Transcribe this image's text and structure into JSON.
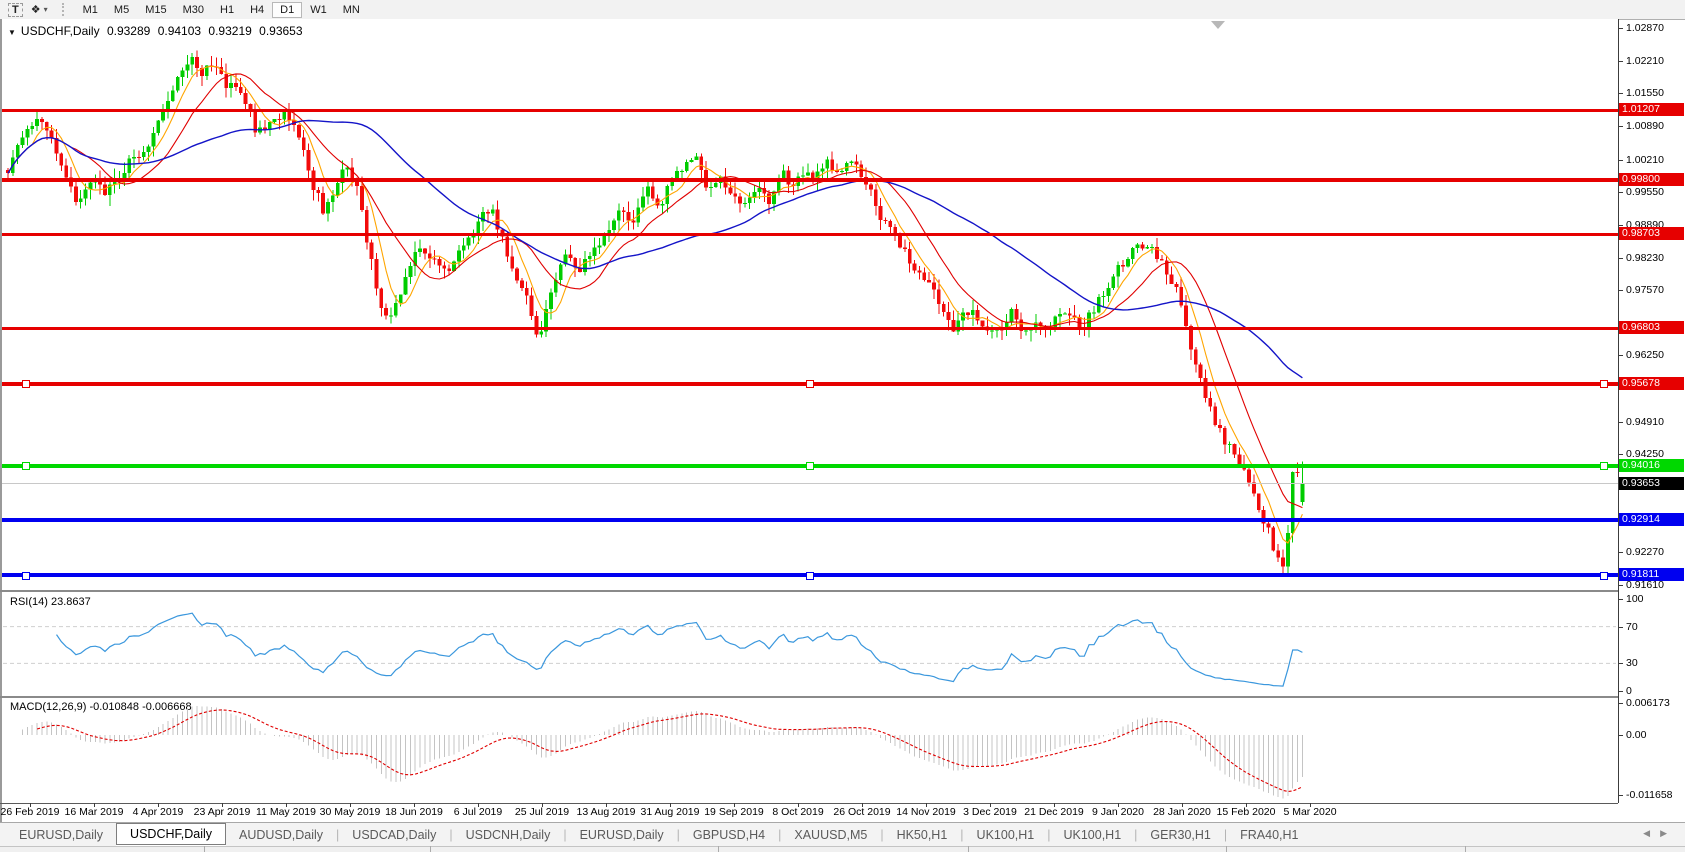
{
  "toolbar": {
    "text_tool_label": "T",
    "arrows_tool_icon": "❖",
    "caret_icon": "▾",
    "timeframes": [
      "M1",
      "M5",
      "M15",
      "M30",
      "H1",
      "H4",
      "D1",
      "W1",
      "MN"
    ],
    "active_timeframe": "D1"
  },
  "chart_header": {
    "dropdown_icon": "▼",
    "symbol": "USDCHF,Daily",
    "open": "0.93289",
    "high": "0.94103",
    "low": "0.93219",
    "close": "0.93653"
  },
  "price_axis": {
    "ticks": [
      "1.02870",
      "1.02210",
      "1.01550",
      "1.00890",
      "1.00210",
      "0.99550",
      "0.98890",
      "0.98230",
      "0.97570",
      "0.96250",
      "0.94910",
      "0.94250",
      "0.92270",
      "0.91610"
    ]
  },
  "chart_data": {
    "type": "candlestick",
    "symbol": "USDCHF",
    "timeframe": "Daily",
    "visible_price_range": [
      0.9161,
      1.0287
    ],
    "hlines": [
      {
        "price": 1.01207,
        "label": "1.01207",
        "color": "red",
        "thickness": 3,
        "selected": false
      },
      {
        "price": 0.998,
        "label": "0.99800",
        "color": "red",
        "thickness": 4,
        "selected": false
      },
      {
        "price": 0.98703,
        "label": "0.98703",
        "color": "red",
        "thickness": 3,
        "selected": false
      },
      {
        "price": 0.96803,
        "label": "0.96803",
        "color": "red",
        "thickness": 3,
        "selected": false
      },
      {
        "price": 0.95678,
        "label": "0.95678",
        "color": "red",
        "thickness": 4,
        "selected": true
      },
      {
        "price": 0.94016,
        "label": "0.94016",
        "color": "green",
        "thickness": 4,
        "selected": true
      },
      {
        "price": 0.92914,
        "label": "0.92914",
        "color": "blue",
        "thickness": 4,
        "selected": false
      },
      {
        "price": 0.91811,
        "label": "0.91811",
        "color": "blue",
        "thickness": 4,
        "selected": true
      }
    ],
    "current_price": {
      "value": 0.93653,
      "label": "0.93653"
    },
    "last_bar": {
      "open": 0.93289,
      "high": 0.94103,
      "low": 0.93219,
      "close": 0.93653
    },
    "moving_averages": [
      {
        "name": "fast",
        "period": 6,
        "color": "#ffa500"
      },
      {
        "name": "medium",
        "period": 14,
        "color": "#e00000"
      },
      {
        "name": "slow",
        "period": 45,
        "color": "#1414c8"
      }
    ],
    "date_ticks": [
      "26 Feb 2019",
      "16 Mar 2019",
      "4 Apr 2019",
      "23 Apr 2019",
      "11 May 2019",
      "30 May 2019",
      "18 Jun 2019",
      "6 Jul 2019",
      "25 Jul 2019",
      "13 Aug 2019",
      "31 Aug 2019",
      "19 Sep 2019",
      "8 Oct 2019",
      "26 Oct 2019",
      "14 Nov 2019",
      "3 Dec 2019",
      "21 Dec 2019",
      "9 Jan 2020",
      "28 Jan 2020",
      "15 Feb 2020",
      "5 Mar 2020"
    ],
    "price_path_keyframes": [
      [
        8,
        1.0
      ],
      [
        22,
        1.006
      ],
      [
        36,
        1.0095
      ],
      [
        50,
        1.008
      ],
      [
        64,
        1.0
      ],
      [
        78,
        0.9932
      ],
      [
        92,
        0.998
      ],
      [
        106,
        0.9958
      ],
      [
        120,
        0.999
      ],
      [
        134,
        1.003
      ],
      [
        148,
        1.0045
      ],
      [
        162,
        1.011
      ],
      [
        176,
        1.019
      ],
      [
        190,
        1.0228
      ],
      [
        202,
        1.019
      ],
      [
        214,
        1.0218
      ],
      [
        228,
        1.017
      ],
      [
        242,
        1.0155
      ],
      [
        256,
        1.008
      ],
      [
        270,
        1.0088
      ],
      [
        284,
        1.012
      ],
      [
        298,
        1.008
      ],
      [
        312,
        0.9975
      ],
      [
        324,
        0.9918
      ],
      [
        336,
        0.996
      ],
      [
        348,
        1.0018
      ],
      [
        358,
        0.9955
      ],
      [
        370,
        0.983
      ],
      [
        382,
        0.9708
      ],
      [
        392,
        0.97
      ],
      [
        406,
        0.9782
      ],
      [
        420,
        0.9845
      ],
      [
        434,
        0.9818
      ],
      [
        448,
        0.98
      ],
      [
        462,
        0.9842
      ],
      [
        476,
        0.9882
      ],
      [
        490,
        0.9926
      ],
      [
        502,
        0.9868
      ],
      [
        514,
        0.979
      ],
      [
        526,
        0.9742
      ],
      [
        538,
        0.966
      ],
      [
        552,
        0.9762
      ],
      [
        566,
        0.9832
      ],
      [
        580,
        0.9792
      ],
      [
        594,
        0.9842
      ],
      [
        608,
        0.9882
      ],
      [
        622,
        0.9922
      ],
      [
        634,
        0.9892
      ],
      [
        648,
        0.9962
      ],
      [
        660,
        0.9925
      ],
      [
        672,
        0.9978
      ],
      [
        684,
        1.0002
      ],
      [
        696,
        1.0022
      ],
      [
        708,
        0.9962
      ],
      [
        720,
        0.9988
      ],
      [
        732,
        0.9952
      ],
      [
        744,
        0.9922
      ],
      [
        756,
        0.9968
      ],
      [
        768,
        0.9932
      ],
      [
        780,
        0.9996
      ],
      [
        792,
        0.9972
      ],
      [
        804,
        1.0002
      ],
      [
        816,
        0.9982
      ],
      [
        828,
        1.0012
      ],
      [
        840,
        0.9992
      ],
      [
        852,
        1.0022
      ],
      [
        862,
        0.9988
      ],
      [
        872,
        0.9948
      ],
      [
        882,
        0.9902
      ],
      [
        892,
        0.9868
      ],
      [
        904,
        0.9832
      ],
      [
        916,
        0.9802
      ],
      [
        928,
        0.9778
      ],
      [
        940,
        0.9722
      ],
      [
        952,
        0.9675
      ],
      [
        964,
        0.9722
      ],
      [
        976,
        0.97
      ],
      [
        988,
        0.9685
      ],
      [
        1000,
        0.967
      ],
      [
        1012,
        0.9726
      ],
      [
        1024,
        0.9658
      ],
      [
        1034,
        0.97
      ],
      [
        1046,
        0.9682
      ],
      [
        1058,
        0.9712
      ],
      [
        1070,
        0.97
      ],
      [
        1082,
        0.968
      ],
      [
        1094,
        0.972
      ],
      [
        1106,
        0.9762
      ],
      [
        1118,
        0.98
      ],
      [
        1130,
        0.983
      ],
      [
        1142,
        0.9852
      ],
      [
        1154,
        0.984
      ],
      [
        1164,
        0.98
      ],
      [
        1174,
        0.977
      ],
      [
        1184,
        0.97
      ],
      [
        1194,
        0.962
      ],
      [
        1204,
        0.955
      ],
      [
        1214,
        0.95
      ],
      [
        1224,
        0.9455
      ],
      [
        1234,
        0.943
      ],
      [
        1244,
        0.939
      ],
      [
        1254,
        0.934
      ],
      [
        1264,
        0.929
      ],
      [
        1272,
        0.925
      ],
      [
        1280,
        0.92
      ],
      [
        1286,
        0.9185
      ],
      [
        1291,
        0.94
      ],
      [
        1297,
        0.939
      ],
      [
        1302,
        0.942
      ],
      [
        1307,
        0.93653
      ]
    ]
  },
  "rsi": {
    "label": "RSI(14) 23.8637",
    "period": 14,
    "value": 23.8637,
    "scale_labels": [
      {
        "text": "100",
        "value": 100
      },
      {
        "text": "70",
        "value": 70
      },
      {
        "text": "30",
        "value": 30
      },
      {
        "text": "0",
        "value": 0
      }
    ],
    "dashed_levels": [
      70,
      30
    ]
  },
  "macd": {
    "label": "MACD(12,26,9) -0.010848 -0.006668",
    "macd_value": -0.010848,
    "signal_value": -0.006668,
    "scale_labels": [
      {
        "text": "0.006173",
        "value": 0.006173
      },
      {
        "text": "0.00",
        "value": 0
      },
      {
        "text": "-0.011658",
        "value": -0.011658
      }
    ]
  },
  "tabs": {
    "scroll_left_icon": "◀",
    "scroll_right_icon": "▶",
    "items": [
      {
        "label": "EURUSD,Daily",
        "active": false
      },
      {
        "label": "USDCHF,Daily",
        "active": true
      },
      {
        "label": "AUDUSD,Daily",
        "active": false
      },
      {
        "label": "USDCAD,Daily",
        "active": false
      },
      {
        "label": "USDCNH,Daily",
        "active": false
      },
      {
        "label": "EURUSD,Daily",
        "active": false
      },
      {
        "label": "GBPUSD,H4",
        "active": false
      },
      {
        "label": "XAUUSD,M5",
        "active": false
      },
      {
        "label": "HK50,H1",
        "active": false
      },
      {
        "label": "UK100,H1",
        "active": false
      },
      {
        "label": "UK100,H1",
        "active": false
      },
      {
        "label": "GER30,H1",
        "active": false
      },
      {
        "label": "FRA40,H1",
        "active": false
      }
    ]
  },
  "colors": {
    "up_candle": "#00cc00",
    "down_candle": "#f20b0b",
    "red_line": "#e60000",
    "green_line": "#00d800",
    "blue_line": "#0000f0",
    "current_price_line": "#c8c8c8",
    "current_price_badge": "#000000",
    "rsi_line": "#3a97dd",
    "macd_histogram": "#c4c4c4",
    "macd_signal": "#e00000"
  }
}
